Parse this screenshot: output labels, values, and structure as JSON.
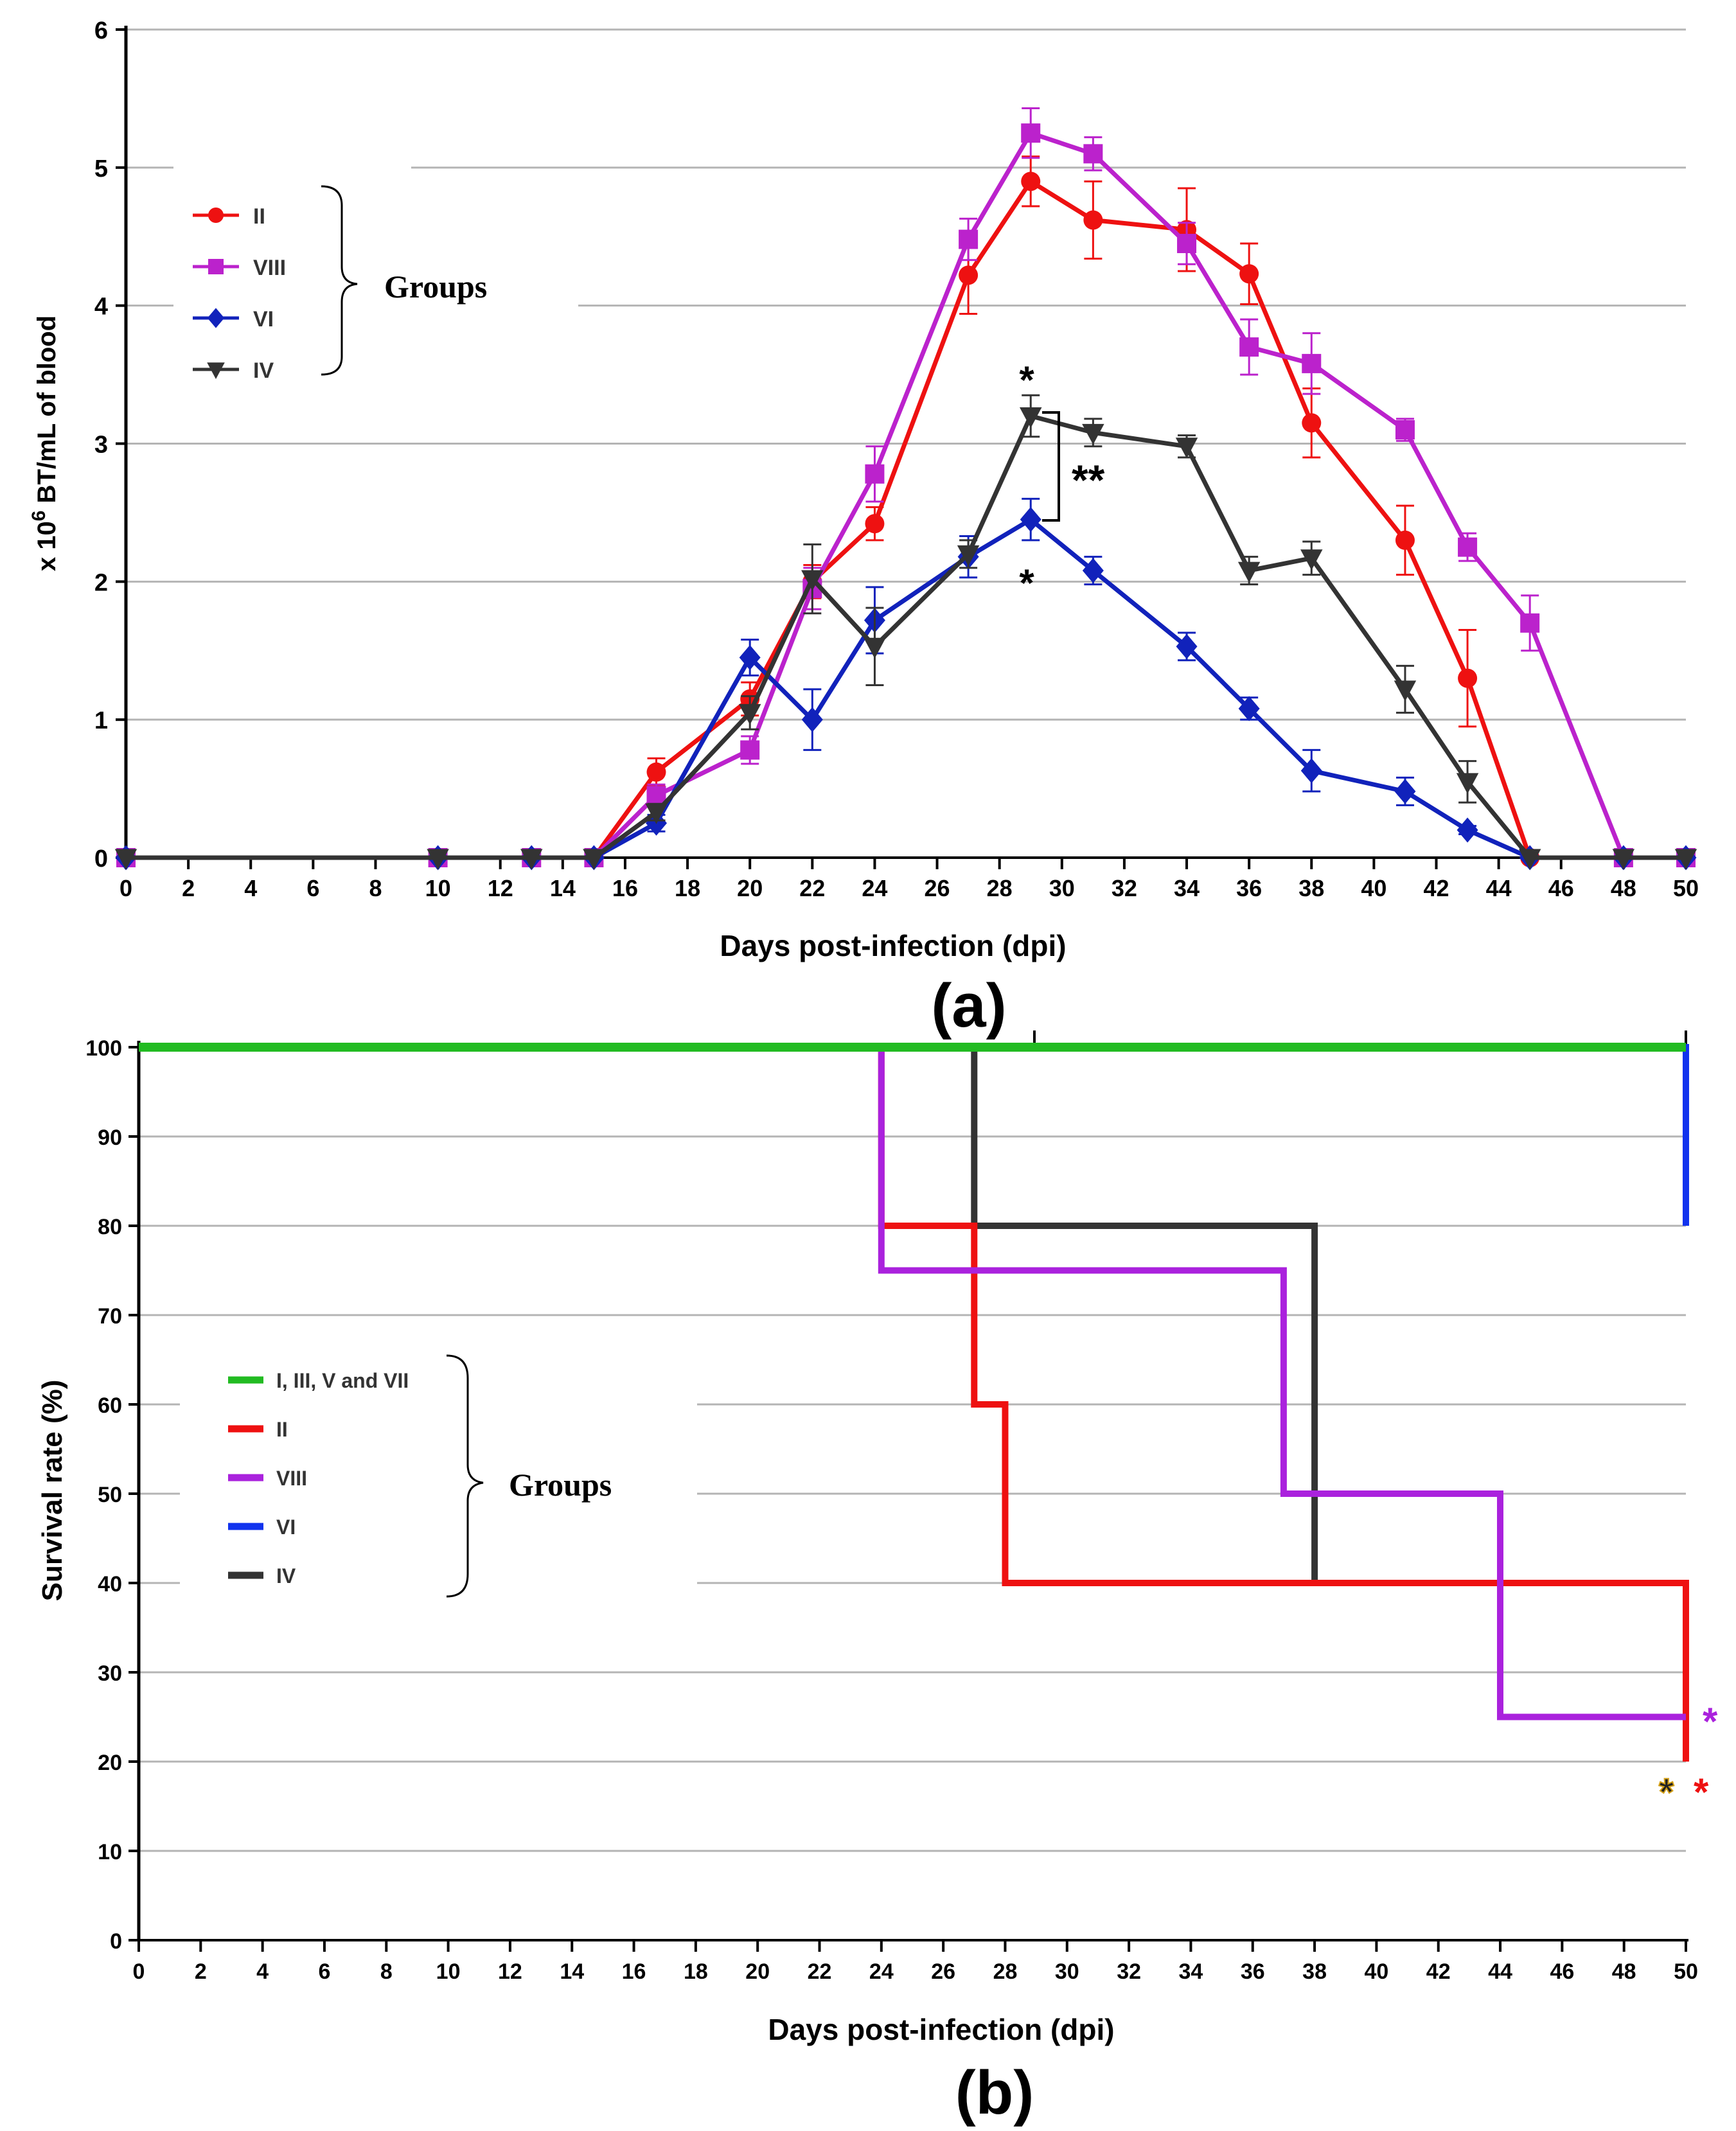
{
  "chart_data": [
    {
      "type": "line",
      "panel_label": "(a)",
      "xlabel": "Days post-infection (dpi)",
      "ylabel_prefix": "x 10",
      "ylabel_exponent": "6",
      "ylabel_suffix": " BT/mL of blood",
      "xlim": [
        0,
        50
      ],
      "ylim": [
        0,
        6
      ],
      "xticks": [
        "0",
        "2",
        "4",
        "6",
        "8",
        "10",
        "12",
        "14",
        "16",
        "18",
        "20",
        "22",
        "24",
        "26",
        "28",
        "30",
        "32",
        "34",
        "36",
        "38",
        "40",
        "42",
        "44",
        "46",
        "48",
        "50"
      ],
      "yticks": [
        "0",
        "1",
        "2",
        "3",
        "4",
        "5",
        "6"
      ],
      "grid": true,
      "legend_title": "Groups",
      "series": [
        {
          "name": "II",
          "color": "#ee1111",
          "marker": "circle",
          "x": [
            0,
            10,
            13,
            15,
            17,
            20,
            22,
            24,
            27,
            29,
            31,
            34,
            36,
            38,
            41,
            43,
            45,
            48,
            50
          ],
          "y": [
            0,
            0,
            0,
            0,
            0.62,
            1.15,
            2.0,
            2.42,
            4.22,
            4.9,
            4.62,
            4.55,
            4.23,
            3.15,
            2.3,
            1.3,
            0,
            0,
            0
          ],
          "err": [
            0,
            0,
            0,
            0,
            0.1,
            0.12,
            0.12,
            0.12,
            0.28,
            0.18,
            0.28,
            0.3,
            0.22,
            0.25,
            0.25,
            0.35,
            0,
            0,
            0
          ]
        },
        {
          "name": "VIII",
          "color": "#bb22cc",
          "marker": "square",
          "x": [
            0,
            10,
            13,
            15,
            17,
            20,
            22,
            24,
            27,
            29,
            31,
            34,
            36,
            38,
            41,
            43,
            45,
            48,
            50
          ],
          "y": [
            0,
            0,
            0,
            0,
            0.45,
            0.78,
            1.95,
            2.78,
            4.48,
            5.25,
            5.1,
            4.45,
            3.7,
            3.58,
            3.1,
            2.25,
            1.7,
            0,
            0
          ],
          "err": [
            0,
            0,
            0,
            0,
            0.08,
            0.1,
            0.15,
            0.2,
            0.15,
            0.18,
            0.12,
            0.15,
            0.2,
            0.22,
            0.08,
            0.1,
            0.2,
            0,
            0
          ]
        },
        {
          "name": "VI",
          "color": "#1122bb",
          "marker": "diamond",
          "x": [
            0,
            10,
            13,
            15,
            17,
            20,
            22,
            24,
            27,
            29,
            31,
            34,
            36,
            38,
            41,
            43,
            45,
            48,
            50
          ],
          "y": [
            0,
            0,
            0,
            0,
            0.25,
            1.45,
            1.0,
            1.72,
            2.18,
            2.45,
            2.08,
            1.53,
            1.08,
            0.63,
            0.48,
            0.2,
            0,
            0,
            0
          ],
          "err": [
            0,
            0,
            0,
            0,
            0.06,
            0.13,
            0.22,
            0.24,
            0.15,
            0.15,
            0.1,
            0.1,
            0.08,
            0.15,
            0.1,
            0.03,
            0,
            0,
            0
          ]
        },
        {
          "name": "IV",
          "color": "#333333",
          "marker": "triangle-down",
          "x": [
            0,
            10,
            13,
            15,
            17,
            20,
            22,
            24,
            27,
            29,
            31,
            34,
            36,
            38,
            41,
            43,
            45,
            48,
            50
          ],
          "y": [
            0,
            0,
            0,
            0,
            0.33,
            1.05,
            2.02,
            1.53,
            2.2,
            3.2,
            3.08,
            2.98,
            2.08,
            2.17,
            1.22,
            0.55,
            0,
            0,
            0
          ],
          "err": [
            0,
            0,
            0,
            0,
            0.06,
            0.12,
            0.25,
            0.28,
            0.1,
            0.15,
            0.1,
            0.08,
            0.1,
            0.12,
            0.17,
            0.15,
            0,
            0,
            0
          ]
        }
      ],
      "annotations": {
        "star_top": "*",
        "star_bottom": "*",
        "double_star": "**"
      }
    },
    {
      "type": "line",
      "subtype": "survival-step",
      "panel_label": "(b)",
      "xlabel": "Days post-infection (dpi)",
      "ylabel": "Survival rate (%)",
      "xlim": [
        0,
        50
      ],
      "ylim": [
        0,
        100
      ],
      "xticks": [
        "0",
        "2",
        "4",
        "6",
        "8",
        "10",
        "12",
        "14",
        "16",
        "18",
        "20",
        "22",
        "24",
        "26",
        "28",
        "30",
        "32",
        "34",
        "36",
        "38",
        "40",
        "42",
        "44",
        "46",
        "48",
        "50"
      ],
      "yticks": [
        "0",
        "10",
        "20",
        "30",
        "40",
        "50",
        "60",
        "70",
        "80",
        "90",
        "100"
      ],
      "grid": true,
      "legend_title": "Groups",
      "series": [
        {
          "name": "I, III, V and VII",
          "color": "#22bb22",
          "x": [
            0,
            50
          ],
          "y": [
            100,
            100
          ]
        },
        {
          "name": "II",
          "color": "#ee1111",
          "x": [
            0,
            24,
            27,
            28,
            50,
            50
          ],
          "y": [
            100,
            80,
            60,
            40,
            40,
            20
          ]
        },
        {
          "name": "VIII",
          "color": "#aa22dd",
          "x": [
            0,
            24,
            37,
            44,
            50
          ],
          "y": [
            100,
            75,
            50,
            25,
            25
          ]
        },
        {
          "name": "VI",
          "color": "#1133ee",
          "x": [
            0,
            50,
            50
          ],
          "y": [
            100,
            100,
            80
          ]
        },
        {
          "name": "IV",
          "color": "#333333",
          "x": [
            0,
            27,
            38,
            50
          ],
          "y": [
            100,
            80,
            40,
            40
          ]
        }
      ],
      "annotations": {
        "star_viii": "*",
        "star_ii": "*",
        "star_iv": "*"
      }
    }
  ]
}
